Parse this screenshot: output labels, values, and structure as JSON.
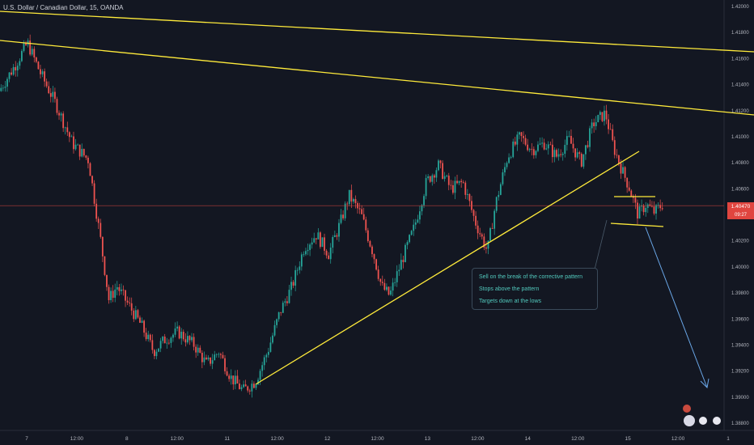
{
  "header": {
    "title": "U.S. Dollar / Canadian Dollar, 15, OANDA"
  },
  "annotation": {
    "lines": [
      "Sell on the break of the corrective pattern",
      "Stops above the pattern",
      "Targets down at the lows"
    ]
  },
  "price_tag": {
    "value": "1.40470",
    "timer": "09:27"
  },
  "colors": {
    "up": "#26a69a",
    "down": "#ef5350",
    "trendline": "#ffeb3b",
    "arrow": "#6aa7e8",
    "price_line": "#e0453f",
    "background": "#131722"
  },
  "chart_data": {
    "type": "candlestick",
    "title": "U.S. Dollar / Canadian Dollar, 15, OANDA",
    "ylim": [
      1.3875,
      1.4205
    ],
    "y_ticks": [
      1.42,
      1.418,
      1.416,
      1.414,
      1.412,
      1.41,
      1.408,
      1.406,
      1.404,
      1.402,
      1.4,
      1.398,
      1.396,
      1.394,
      1.392,
      1.39,
      1.388
    ],
    "x_ticks": [
      "7",
      "12:00",
      "8",
      "12:00",
      "11",
      "12:00",
      "12",
      "12:00",
      "13",
      "12:00",
      "14",
      "12:00",
      "15",
      "12:00",
      "1"
    ],
    "current_price": 1.4047,
    "grid": false,
    "price_path": [
      [
        0,
        1.4135
      ],
      [
        0.02,
        1.4155
      ],
      [
        0.035,
        1.4172
      ],
      [
        0.05,
        1.415
      ],
      [
        0.07,
        1.4125
      ],
      [
        0.09,
        1.4095
      ],
      [
        0.11,
        1.4082
      ],
      [
        0.125,
        1.402
      ],
      [
        0.135,
        1.3975
      ],
      [
        0.145,
        1.3985
      ],
      [
        0.16,
        1.397
      ],
      [
        0.175,
        1.3955
      ],
      [
        0.19,
        1.3935
      ],
      [
        0.205,
        1.3945
      ],
      [
        0.22,
        1.395
      ],
      [
        0.24,
        1.394
      ],
      [
        0.255,
        1.3925
      ],
      [
        0.27,
        1.3935
      ],
      [
        0.285,
        1.3915
      ],
      [
        0.3,
        1.3905
      ],
      [
        0.315,
        1.3912
      ],
      [
        0.33,
        1.3935
      ],
      [
        0.345,
        1.3965
      ],
      [
        0.36,
        1.3985
      ],
      [
        0.375,
        1.4015
      ],
      [
        0.39,
        1.4025
      ],
      [
        0.405,
        1.401
      ],
      [
        0.42,
        1.4035
      ],
      [
        0.43,
        1.4055
      ],
      [
        0.445,
        1.404
      ],
      [
        0.46,
        1.401
      ],
      [
        0.47,
        1.3985
      ],
      [
        0.48,
        1.3978
      ],
      [
        0.495,
        1.4005
      ],
      [
        0.51,
        1.403
      ],
      [
        0.525,
        1.4065
      ],
      [
        0.54,
        1.4078
      ],
      [
        0.555,
        1.406
      ],
      [
        0.57,
        1.4065
      ],
      [
        0.585,
        1.4035
      ],
      [
        0.6,
        1.4012
      ],
      [
        0.61,
        1.4048
      ],
      [
        0.625,
        1.4085
      ],
      [
        0.64,
        1.41
      ],
      [
        0.655,
        1.409
      ],
      [
        0.67,
        1.4095
      ],
      [
        0.685,
        1.4085
      ],
      [
        0.7,
        1.4098
      ],
      [
        0.715,
        1.408
      ],
      [
        0.73,
        1.411
      ],
      [
        0.745,
        1.4118
      ],
      [
        0.755,
        1.4092
      ],
      [
        0.765,
        1.4075
      ],
      [
        0.775,
        1.406
      ],
      [
        0.785,
        1.404
      ],
      [
        0.795,
        1.4048
      ],
      [
        0.805,
        1.4042
      ],
      [
        0.815,
        1.4048
      ]
    ]
  }
}
